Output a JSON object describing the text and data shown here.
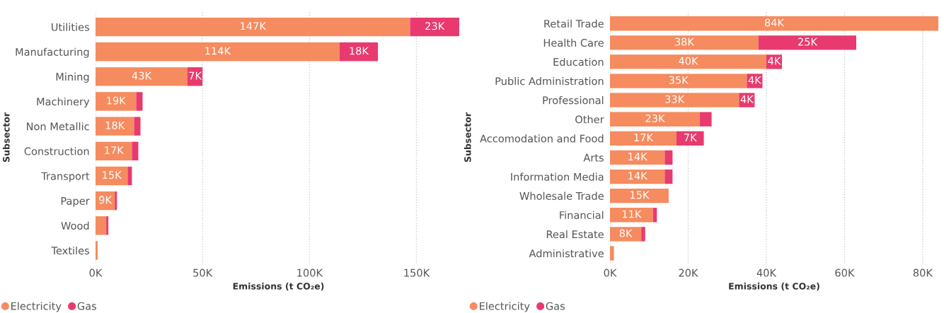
{
  "chart_data": [
    {
      "type": "bar",
      "orientation": "horizontal",
      "stacked": true,
      "xlabel": "Emissions (t CO₂e)",
      "ylabel": "Subsector",
      "categories": [
        "Utilities",
        "Manufacturing",
        "Mining",
        "Machinery",
        "Non Metallic",
        "Construction",
        "Transport",
        "Paper",
        "Wood",
        "Textiles"
      ],
      "series": [
        {
          "name": "Electricity",
          "color": "#f58b5f",
          "values": [
            147000,
            114000,
            43000,
            19000,
            18000,
            17000,
            15000,
            9000,
            5000,
            1000
          ],
          "value_labels": [
            "147K",
            "114K",
            "43K",
            "19K",
            "18K",
            "17K",
            "15K",
            "9K",
            null,
            null
          ]
        },
        {
          "name": "Gas",
          "color": "#e83a6f",
          "values": [
            23000,
            18000,
            7000,
            3000,
            3000,
            3000,
            2000,
            1000,
            1000,
            null
          ],
          "value_labels": [
            "23K",
            "18K",
            "7K",
            null,
            null,
            null,
            null,
            null,
            null,
            null
          ]
        }
      ],
      "xlim": [
        0,
        171000
      ],
      "xticks": [
        {
          "value": 0,
          "label": "0K"
        },
        {
          "value": 50000,
          "label": "50K"
        },
        {
          "value": 100000,
          "label": "100K"
        },
        {
          "value": 150000,
          "label": "150K"
        }
      ],
      "grid": "x",
      "legend": "bottom left"
    },
    {
      "type": "bar",
      "orientation": "horizontal",
      "stacked": true,
      "xlabel": "Emissions (t CO₂e)",
      "ylabel": "Subsector",
      "categories": [
        "Retail Trade",
        "Health Care",
        "Education",
        "Public Administration",
        "Professional",
        "Other",
        "Accomodation and Food",
        "Arts",
        "Information Media",
        "Wholesale Trade",
        "Financial",
        "Real Estate",
        "Administrative"
      ],
      "series": [
        {
          "name": "Electricity",
          "color": "#f58b5f",
          "values": [
            84000,
            38000,
            40000,
            35000,
            33000,
            23000,
            17000,
            14000,
            14000,
            15000,
            11000,
            8000,
            1000
          ],
          "value_labels": [
            "84K",
            "38K",
            "40K",
            "35K",
            "33K",
            "23K",
            "17K",
            "14K",
            "14K",
            "15K",
            "11K",
            "8K",
            null
          ]
        },
        {
          "name": "Gas",
          "color": "#e83a6f",
          "values": [
            null,
            25000,
            4000,
            4000,
            4000,
            3000,
            7000,
            2000,
            2000,
            null,
            1000,
            1000,
            null
          ],
          "value_labels": [
            null,
            "25K",
            "4K",
            "4K",
            "4K",
            null,
            "7K",
            null,
            null,
            null,
            null,
            null,
            null
          ]
        }
      ],
      "xlim": [
        0,
        84000
      ],
      "xticks": [
        {
          "value": 0,
          "label": "0K"
        },
        {
          "value": 20000,
          "label": "20K"
        },
        {
          "value": 40000,
          "label": "40K"
        },
        {
          "value": 60000,
          "label": "60K"
        },
        {
          "value": 80000,
          "label": "80K"
        }
      ],
      "grid": "x",
      "legend": "bottom left"
    }
  ]
}
